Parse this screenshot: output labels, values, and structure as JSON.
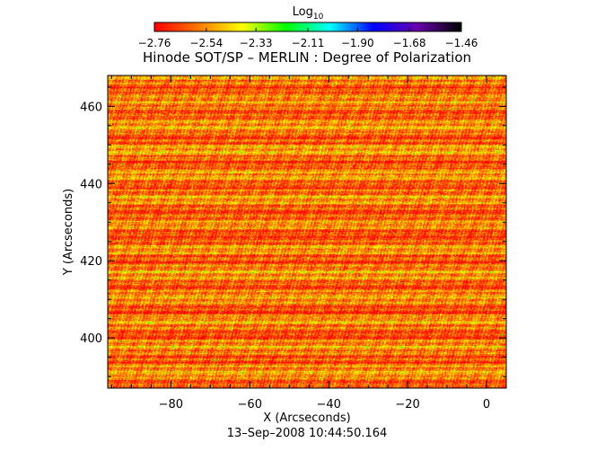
{
  "chart_data": {
    "type": "heatmap",
    "title": "Hinode SOT/SP – MERLIN : Degree of Polarization",
    "xlabel": "X (Arcseconds)",
    "ylabel": "Y (Arcseconds)",
    "footer": "13–Sep–2008 10:44:50.164",
    "xlim": [
      -96,
      5
    ],
    "ylim": [
      387,
      468
    ],
    "x_ticks": [
      {
        "value": -80,
        "label": "−80"
      },
      {
        "value": -60,
        "label": "−60"
      },
      {
        "value": -40,
        "label": "−40"
      },
      {
        "value": -20,
        "label": "−20"
      },
      {
        "value": 0,
        "label": "0"
      }
    ],
    "y_ticks": [
      {
        "value": 400,
        "label": "400"
      },
      {
        "value": 420,
        "label": "420"
      },
      {
        "value": 440,
        "label": "440"
      },
      {
        "value": 460,
        "label": "460"
      }
    ],
    "colorbar": {
      "label_base": "Log",
      "label_sub": "10",
      "scale": "log10",
      "range": [
        -2.76,
        -1.46
      ],
      "colormap": [
        "#ff0000",
        "#ff7a00",
        "#ffff00",
        "#00ff00",
        "#00ffff",
        "#0000ff",
        "#6a00b0",
        "#000000"
      ],
      "ticks": [
        {
          "value": -2.76,
          "label": "−2.76"
        },
        {
          "value": -2.54,
          "label": "−2.54"
        },
        {
          "value": -2.33,
          "label": "−2.33"
        },
        {
          "value": -2.11,
          "label": "−2.11"
        },
        {
          "value": -1.9,
          "label": "−1.90"
        },
        {
          "value": -1.68,
          "label": "−1.68"
        },
        {
          "value": -1.46,
          "label": "−1.46"
        }
      ]
    },
    "texture": "horizontally striated scan-line pattern; mostly red/orange (~-2.76 to -2.5) with yellow and occasional green (~-2.2) streaks"
  }
}
